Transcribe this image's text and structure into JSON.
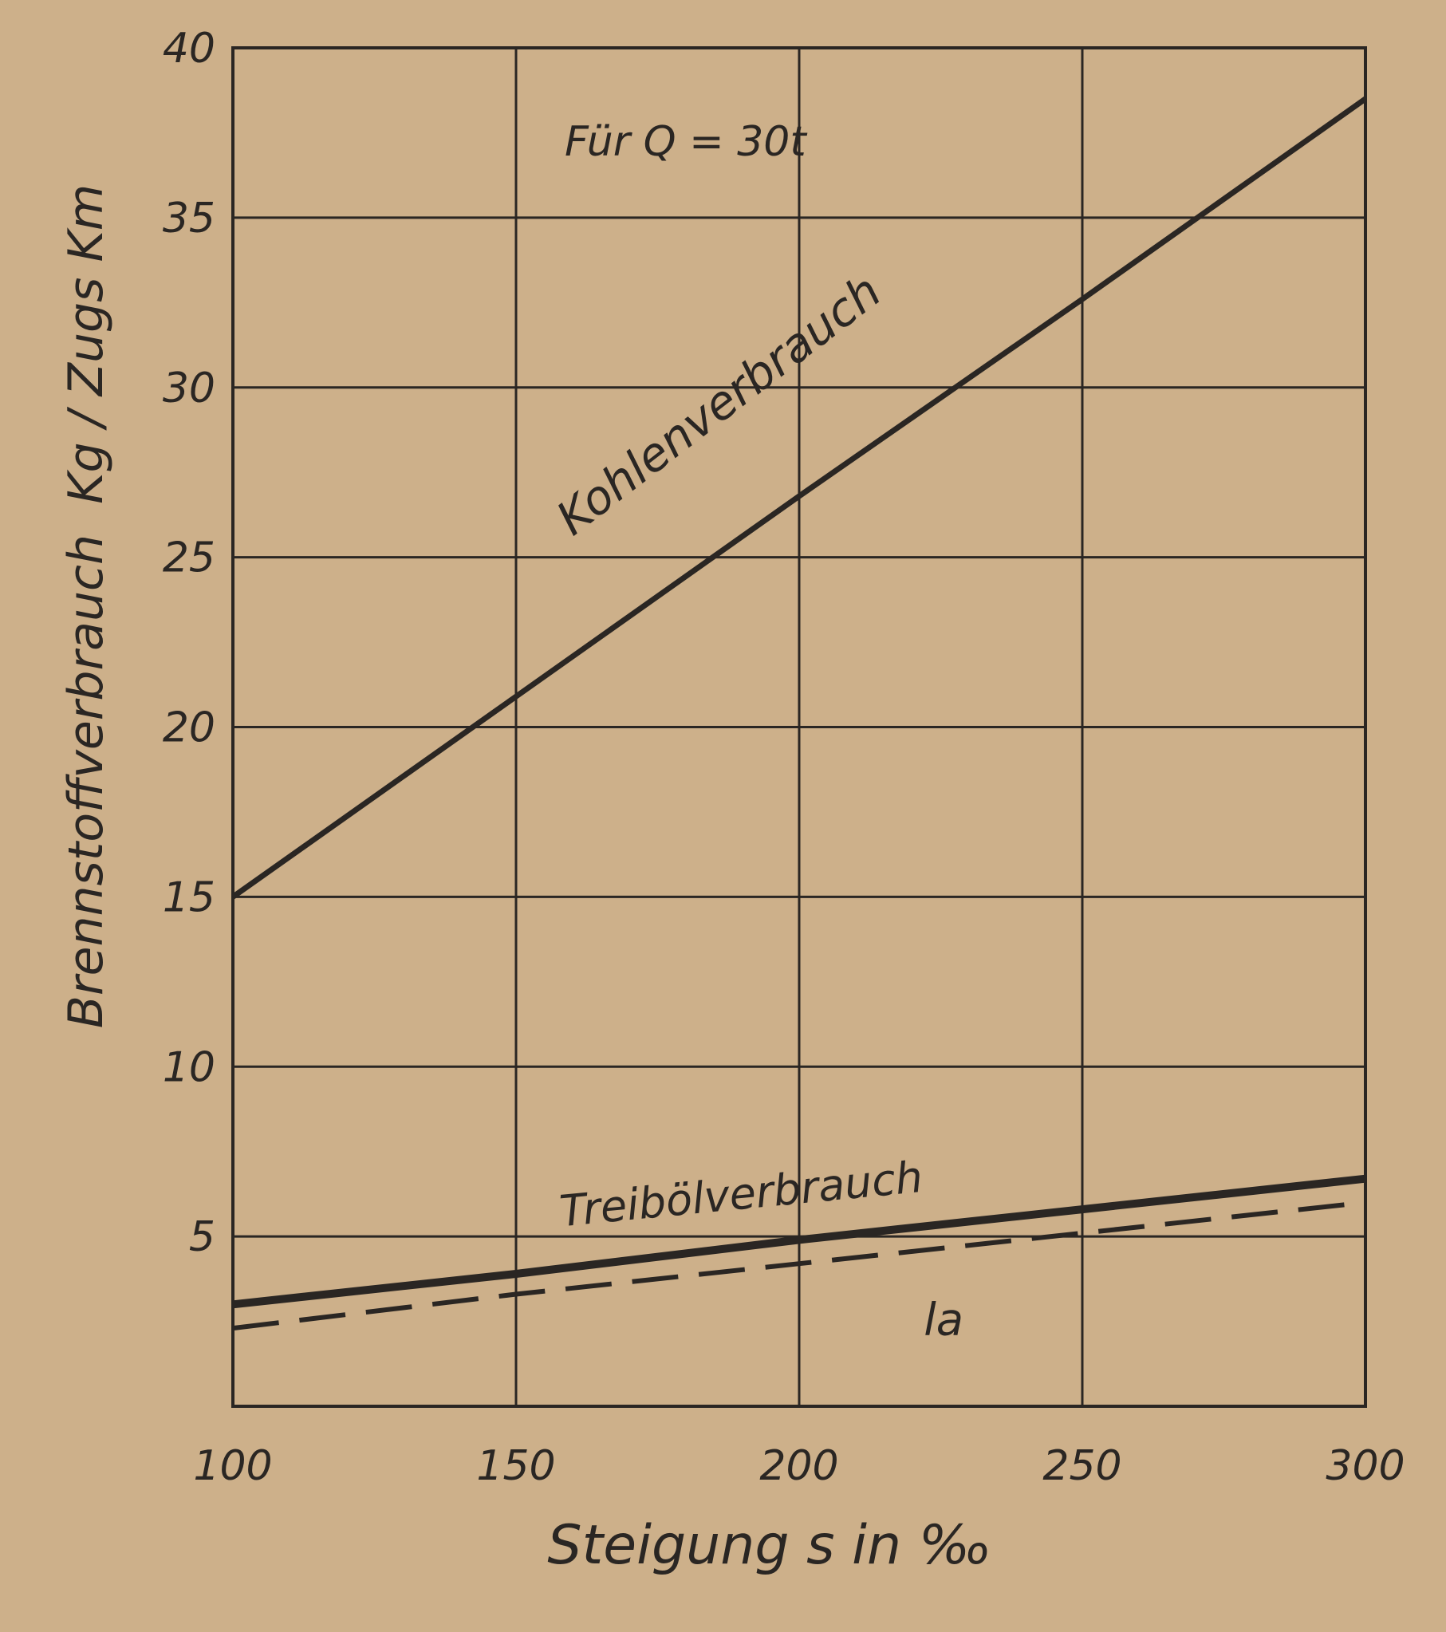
{
  "chart_data": {
    "type": "line",
    "title": "",
    "annotation": "Für Q = 30t",
    "xlabel": "Steigung s in ‰",
    "ylabel": "Brennstoffverbrauch  Kg / Zugs Km",
    "xlim": [
      100,
      300
    ],
    "ylim": [
      0,
      40
    ],
    "x_ticks": [
      "100",
      "150",
      "200",
      "250",
      "300"
    ],
    "y_ticks": [
      "5",
      "10",
      "15",
      "20",
      "25",
      "30",
      "35",
      "40"
    ],
    "grid": true,
    "background": "#cdb08a",
    "ink_color": "#2a2623",
    "series": [
      {
        "name": "Kohlenverbrauch",
        "style": "solid",
        "x": [
          100,
          150,
          200,
          250,
          300
        ],
        "y": [
          15.0,
          20.9,
          26.8,
          32.6,
          38.5
        ]
      },
      {
        "name": "Treibölverbrauch",
        "style": "solid",
        "x": [
          100,
          150,
          200,
          250,
          300
        ],
        "y": [
          3.0,
          3.9,
          4.9,
          5.8,
          6.7
        ]
      },
      {
        "name": "la",
        "style": "dashed",
        "x": [
          100,
          150,
          200,
          250,
          300
        ],
        "y": [
          2.3,
          3.3,
          4.2,
          5.1,
          6.0
        ]
      }
    ]
  }
}
